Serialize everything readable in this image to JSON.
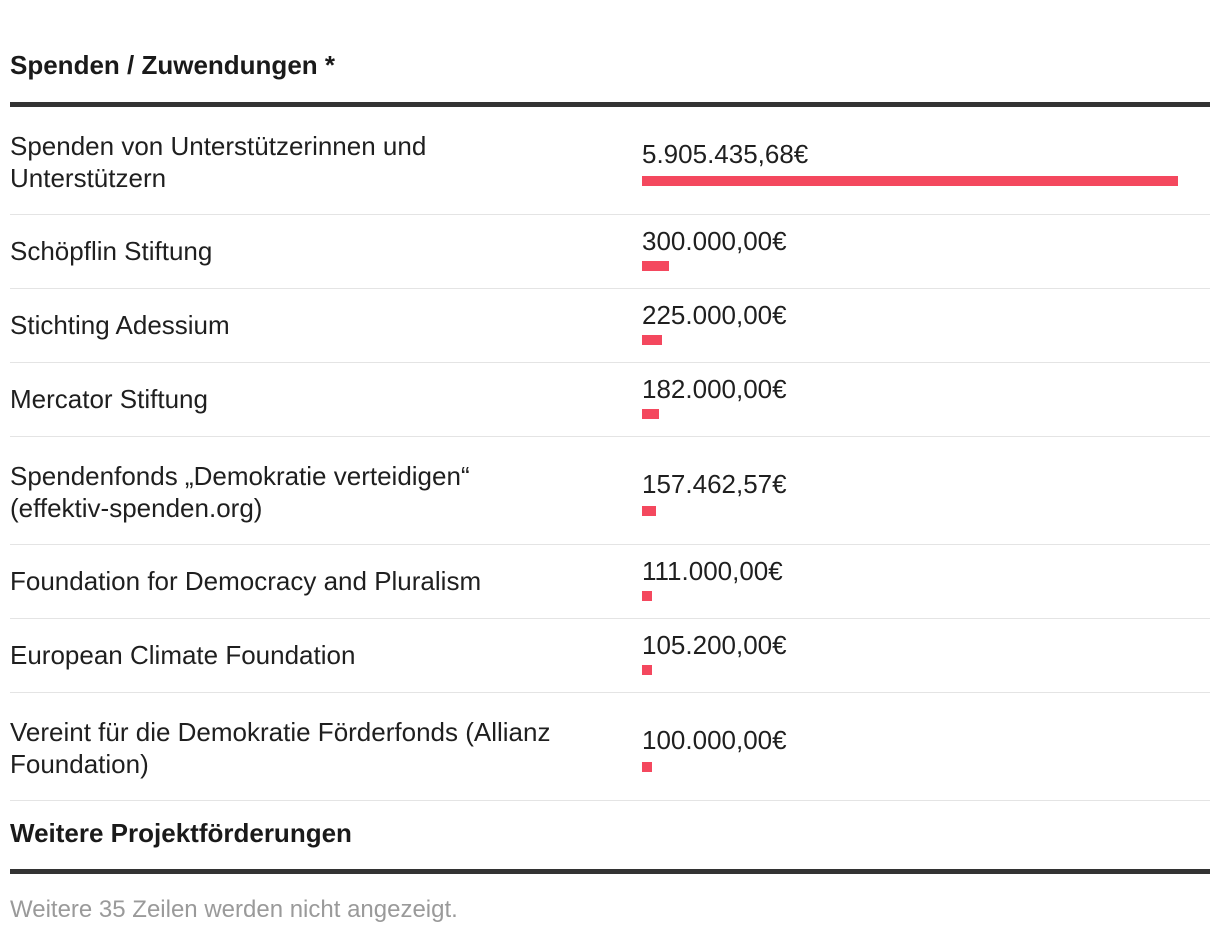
{
  "section_title": "Spenden / Zuwendungen *",
  "footer_section_title": "Weitere Projektförderungen",
  "footer_note": "Weitere 35 Zeilen werden nicht angezeigt.",
  "colors": {
    "bar": "#f4485e",
    "rule": "#333333",
    "note": "#9a9a9a"
  },
  "chart_data": {
    "type": "bar",
    "orientation": "horizontal",
    "title": "Spenden / Zuwendungen *",
    "categories": [
      "Spenden von Unterstützerinnen und Unterstützern",
      "Schöpflin Stiftung",
      "Stichting Adessium",
      "Mercator Stiftung",
      "Spendenfonds „Demokratie verteidigen“ (effektiv-spenden.org)",
      "Foundation for Democracy and Pluralism",
      "European Climate Foundation",
      "Vereint für die Demokratie Förderfonds (Allianz Foundation)"
    ],
    "values": [
      5905435.68,
      300000.0,
      225000.0,
      182000.0,
      157462.57,
      111000.0,
      105200.0,
      100000.0
    ],
    "value_labels": [
      "5.905.435,68€",
      "300.000,00€",
      "225.000,00€",
      "182.000,00€",
      "157.462,57€",
      "111.000,00€",
      "105.200,00€",
      "100.000,00€"
    ],
    "xlim": [
      0,
      5905435.68
    ],
    "grid": false,
    "legend": "none"
  }
}
